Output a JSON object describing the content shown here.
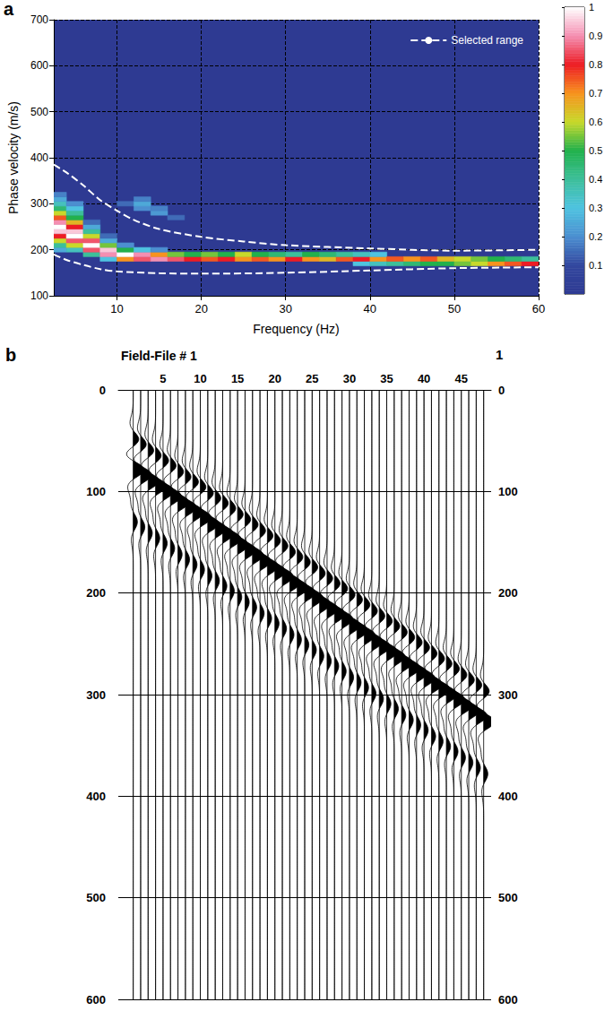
{
  "chart_data": [
    {
      "type": "heatmap",
      "panel_label": "a",
      "x_label": "Frequency (Hz)",
      "y_label": "Phase velocity (m/s)",
      "xlim": [
        2.5,
        60
      ],
      "xticks": [
        10,
        20,
        30,
        40,
        50,
        60
      ],
      "ylim": [
        100,
        700
      ],
      "yticks": [
        100,
        200,
        300,
        400,
        500,
        600,
        700
      ],
      "grid": true,
      "legend": "upper right",
      "cells": [
        [
          3,
          200,
          0.25
        ],
        [
          3,
          210,
          0.4
        ],
        [
          3,
          220,
          0.6
        ],
        [
          3,
          230,
          0.8
        ],
        [
          3,
          240,
          0.95
        ],
        [
          3,
          250,
          1
        ],
        [
          3,
          260,
          0.9
        ],
        [
          3,
          270,
          0.75
        ],
        [
          3,
          280,
          0.6
        ],
        [
          3,
          290,
          0.45
        ],
        [
          3,
          300,
          0.35
        ],
        [
          3,
          310,
          0.25
        ],
        [
          3,
          320,
          0.18
        ],
        [
          5,
          200,
          0.35
        ],
        [
          5,
          210,
          0.6
        ],
        [
          5,
          220,
          0.85
        ],
        [
          5,
          230,
          1
        ],
        [
          5,
          240,
          0.95
        ],
        [
          5,
          250,
          0.8
        ],
        [
          5,
          260,
          0.65
        ],
        [
          5,
          270,
          0.5
        ],
        [
          5,
          280,
          0.4
        ],
        [
          5,
          290,
          0.3
        ],
        [
          5,
          300,
          0.2
        ],
        [
          7,
          190,
          0.4
        ],
        [
          7,
          200,
          0.85
        ],
        [
          7,
          210,
          1
        ],
        [
          7,
          220,
          0.85
        ],
        [
          7,
          230,
          0.6
        ],
        [
          7,
          240,
          0.4
        ],
        [
          7,
          250,
          0.25
        ],
        [
          7,
          260,
          0.15
        ],
        [
          9,
          180,
          0.3
        ],
        [
          9,
          190,
          0.9
        ],
        [
          9,
          200,
          0.95
        ],
        [
          9,
          210,
          0.55
        ],
        [
          9,
          220,
          0.25
        ],
        [
          9,
          230,
          0.15
        ],
        [
          11,
          180,
          0.7
        ],
        [
          11,
          190,
          1
        ],
        [
          11,
          200,
          0.5
        ],
        [
          11,
          210,
          0.2
        ],
        [
          11,
          300,
          0.15
        ],
        [
          13,
          180,
          0.85
        ],
        [
          13,
          190,
          0.9
        ],
        [
          13,
          200,
          0.3
        ],
        [
          13,
          290,
          0.2
        ],
        [
          13,
          300,
          0.25
        ],
        [
          13,
          310,
          0.18
        ],
        [
          15,
          180,
          0.9
        ],
        [
          15,
          190,
          0.7
        ],
        [
          15,
          200,
          0.2
        ],
        [
          15,
          280,
          0.22
        ],
        [
          15,
          290,
          0.18
        ],
        [
          17,
          180,
          0.85
        ],
        [
          17,
          190,
          0.55
        ],
        [
          17,
          270,
          0.15
        ],
        [
          19,
          180,
          0.8
        ],
        [
          19,
          190,
          0.5
        ],
        [
          21,
          180,
          0.75
        ],
        [
          21,
          190,
          0.55
        ],
        [
          23,
          180,
          0.8
        ],
        [
          23,
          190,
          0.5
        ],
        [
          25,
          180,
          0.7
        ],
        [
          25,
          190,
          0.6
        ],
        [
          27,
          180,
          0.75
        ],
        [
          27,
          190,
          0.5
        ],
        [
          29,
          180,
          0.7
        ],
        [
          29,
          190,
          0.45
        ],
        [
          31,
          180,
          0.8
        ],
        [
          31,
          190,
          0.4
        ],
        [
          33,
          180,
          0.7
        ],
        [
          33,
          190,
          0.5
        ],
        [
          35,
          180,
          0.65
        ],
        [
          35,
          190,
          0.45
        ],
        [
          37,
          180,
          0.75
        ],
        [
          37,
          190,
          0.4
        ],
        [
          39,
          170,
          0.3
        ],
        [
          39,
          180,
          0.8
        ],
        [
          39,
          190,
          0.35
        ],
        [
          41,
          170,
          0.35
        ],
        [
          41,
          180,
          0.7
        ],
        [
          41,
          190,
          0.3
        ],
        [
          43,
          170,
          0.4
        ],
        [
          43,
          180,
          0.75
        ],
        [
          45,
          170,
          0.45
        ],
        [
          45,
          180,
          0.7
        ],
        [
          47,
          170,
          0.5
        ],
        [
          47,
          180,
          0.75
        ],
        [
          49,
          170,
          0.5
        ],
        [
          49,
          180,
          0.65
        ],
        [
          51,
          170,
          0.55
        ],
        [
          51,
          180,
          0.6
        ],
        [
          53,
          170,
          0.6
        ],
        [
          53,
          180,
          0.55
        ],
        [
          55,
          170,
          0.7
        ],
        [
          55,
          180,
          0.5
        ],
        [
          57,
          170,
          0.75
        ],
        [
          57,
          180,
          0.45
        ],
        [
          59,
          170,
          0.8
        ],
        [
          59,
          180,
          0.4
        ]
      ],
      "colorbar": {
        "range": [
          0,
          1
        ],
        "ticks": [
          0.1,
          0.2,
          0.3,
          0.4,
          0.5,
          0.6,
          0.7,
          0.8,
          0.9,
          1
        ]
      },
      "series": [
        {
          "name": "Selected range",
          "color": "#ffffff",
          "line_style": "dashed",
          "x": [
            2.5,
            4,
            6,
            8,
            10,
            12,
            15,
            20,
            25,
            30,
            40,
            50,
            60
          ],
          "values": [
            385,
            368,
            340,
            308,
            285,
            265,
            245,
            228,
            218,
            210,
            203,
            198,
            200
          ]
        },
        {
          "name": "Selected range",
          "color": "#ffffff",
          "line_style": "dashed",
          "x": [
            2.5,
            4,
            6,
            8,
            10,
            15,
            20,
            30,
            40,
            50,
            60
          ],
          "values": [
            190,
            178,
            167,
            158,
            153,
            149,
            148,
            150,
            155,
            160,
            162
          ]
        }
      ]
    },
    {
      "type": "wiggle",
      "panel_label": "b",
      "title": "Field-File # 1",
      "annotations": [
        "1"
      ],
      "x": [
        1,
        2,
        3,
        4,
        5,
        6,
        7,
        8,
        9,
        10,
        11,
        12,
        13,
        14,
        15,
        16,
        17,
        18,
        19,
        20,
        21,
        22,
        23,
        24,
        25,
        26,
        27,
        28,
        29,
        30,
        31,
        32,
        33,
        34,
        35,
        36,
        37,
        38,
        39,
        40,
        41,
        42,
        43,
        44,
        45,
        46,
        47,
        48
      ],
      "xlim": [
        -1,
        49
      ],
      "xticks": [
        5,
        10,
        15,
        20,
        25,
        30,
        35,
        40,
        45
      ],
      "ylim": [
        0,
        600
      ],
      "yticks": [
        0,
        100,
        200,
        300,
        400,
        500,
        600
      ],
      "grid": true,
      "color": "#000000",
      "events": [
        {
          "amplitude": 0.6,
          "times": [
            50,
            55,
            61,
            66,
            71,
            76,
            82,
            87,
            92,
            97,
            103,
            108,
            113,
            118,
            124,
            129,
            134,
            140,
            145,
            150,
            155,
            161,
            166,
            171,
            176,
            182,
            187,
            192,
            197,
            203,
            208,
            213,
            219,
            224,
            229,
            234,
            240,
            245,
            250,
            255,
            261,
            266,
            271,
            276,
            282,
            287,
            292,
            298
          ]
        },
        {
          "amplitude": 1.0,
          "times": [
            78,
            83,
            89,
            94,
            99,
            104,
            110,
            115,
            120,
            125,
            131,
            136,
            141,
            146,
            152,
            157,
            162,
            168,
            173,
            178,
            183,
            189,
            194,
            199,
            204,
            210,
            215,
            220,
            225,
            231,
            236,
            241,
            247,
            252,
            257,
            262,
            268,
            273,
            278,
            283,
            289,
            294,
            299,
            304,
            310,
            315,
            320,
            326
          ]
        },
        {
          "amplitude": 0.35,
          "times": [
            130,
            135,
            141,
            146,
            151,
            156,
            162,
            167,
            172,
            177,
            183,
            188,
            193,
            198,
            204,
            209,
            214,
            220,
            225,
            230,
            235,
            241,
            246,
            251,
            256,
            262,
            267,
            272,
            277,
            283,
            288,
            293,
            299,
            304,
            309,
            314,
            320,
            325,
            330,
            335,
            341,
            346,
            351,
            356,
            362,
            367,
            372,
            378
          ]
        }
      ]
    }
  ]
}
